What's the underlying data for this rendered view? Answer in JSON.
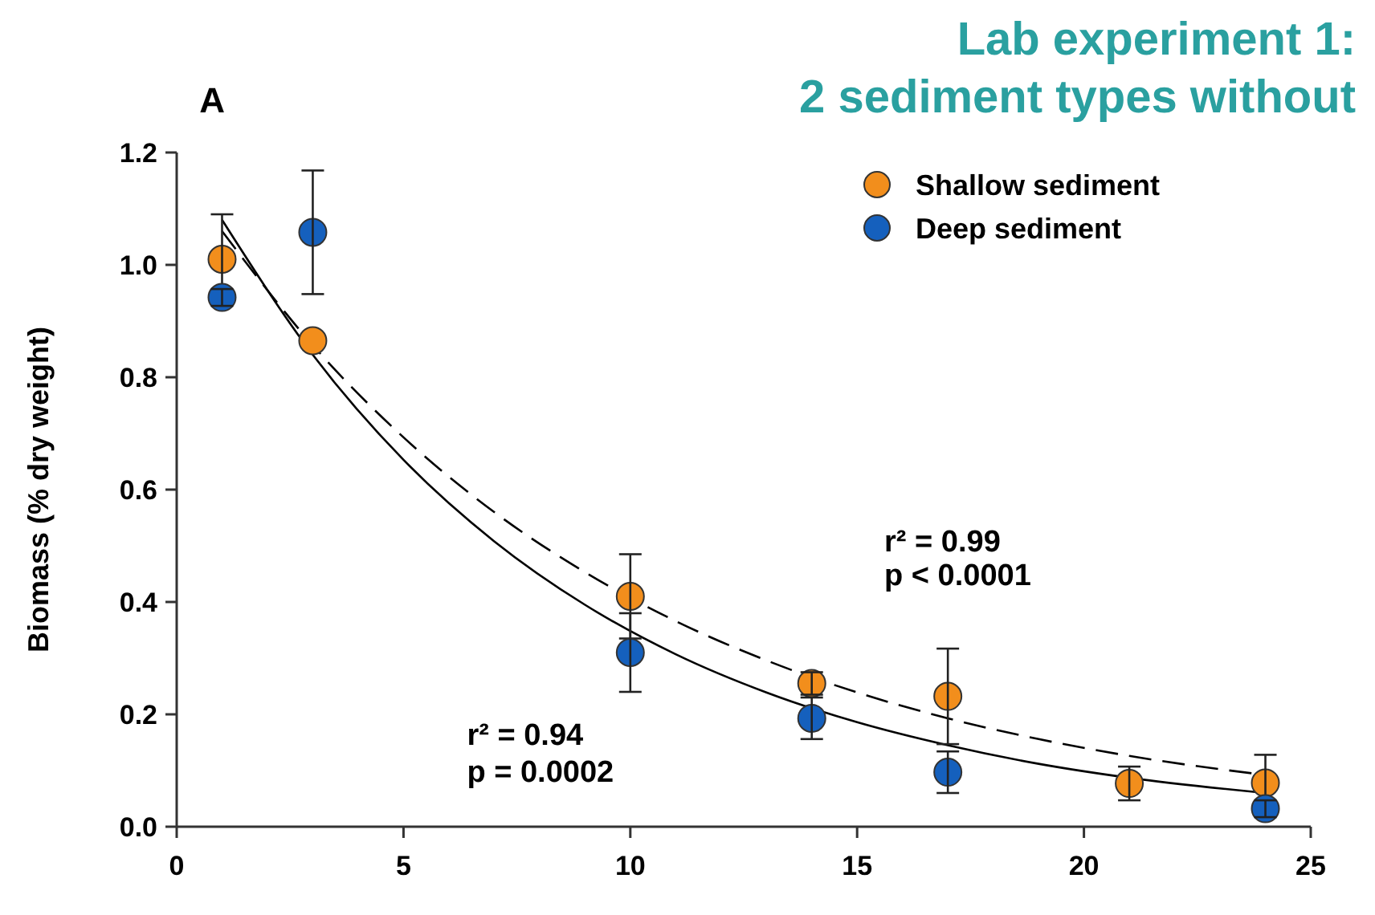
{
  "chart_data": {
    "type": "scatter",
    "title": "Lab experiment 1:",
    "subtitle": "2 sediment types without",
    "ylabel": "Biomass (% dry weight)",
    "xlim": [
      0,
      25
    ],
    "xticks": [
      0,
      5,
      10,
      15,
      20,
      25
    ],
    "ylim": [
      0,
      1.2
    ],
    "yticks": [
      {
        "value": 0,
        "label": "0.0"
      },
      {
        "value": 0.2,
        "label": "0.2"
      },
      {
        "value": 0.4,
        "label": "0.4"
      },
      {
        "value": 0.6,
        "label": "0.6"
      },
      {
        "value": 0.8,
        "label": "0.8"
      },
      {
        "value": 1,
        "label": "1.0"
      },
      {
        "value": 1.2,
        "label": "1.2"
      }
    ],
    "grid": false,
    "legend": "top right",
    "marker": "circle",
    "series": [
      {
        "name": "Shallow sediment",
        "color": "#f28e1c",
        "x": [
          1,
          3,
          10,
          14,
          17,
          21,
          24
        ],
        "values": [
          1.01,
          0.865,
          0.41,
          0.255,
          0.232,
          0.077,
          0.078
        ],
        "errors": [
          0.08,
          null,
          0.075,
          0.02,
          0.085,
          0.03,
          0.05
        ]
      },
      {
        "name": "Deep sediment",
        "color": "#1560bd",
        "x": [
          1,
          3,
          10,
          14,
          17,
          24
        ],
        "values": [
          0.942,
          1.058,
          0.31,
          0.193,
          0.097,
          0.032
        ],
        "errors": [
          0.015,
          0.11,
          0.07,
          0.037,
          0.037,
          0.015
        ]
      },
      {
        "type": "line",
        "color": "#000000",
        "line_style": "dashed",
        "marker": "none",
        "x": [
          1,
          3,
          5,
          7,
          9,
          11,
          13,
          15,
          17,
          19,
          21,
          24
        ],
        "values": [
          1.06,
          0.857,
          0.693,
          0.56,
          0.453,
          0.366,
          0.296,
          0.239,
          0.193,
          0.156,
          0.126,
          0.092
        ]
      },
      {
        "type": "line",
        "color": "#000000",
        "line_style": "solid",
        "marker": "none",
        "x": [
          1,
          3,
          5,
          7,
          9,
          11,
          13,
          15,
          17,
          19,
          21,
          24
        ],
        "values": [
          1.08,
          0.84,
          0.653,
          0.508,
          0.395,
          0.307,
          0.239,
          0.186,
          0.145,
          0.112,
          0.087,
          0.06
        ]
      }
    ],
    "annotations": [
      "A",
      "r² = 0.99",
      "p < 0.0001",
      "r² = 0.94",
      "p = 0.0002"
    ]
  }
}
